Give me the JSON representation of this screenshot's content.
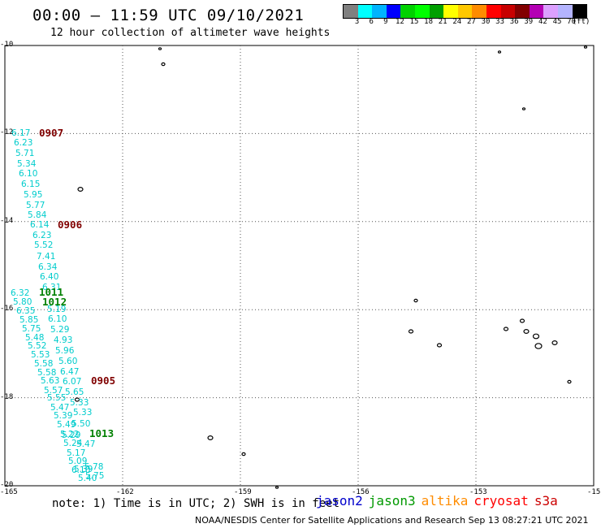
{
  "title": "00:00 – 11:59 UTC 09/10/2021",
  "subtitle": "12 hour collection of altimeter wave heights",
  "scale": {
    "colors": [
      "#808080",
      "#00ffff",
      "#00b4ff",
      "#0000ff",
      "#00d200",
      "#00ff00",
      "#00a000",
      "#ffff00",
      "#ffc800",
      "#ff8c00",
      "#ff0000",
      "#c80000",
      "#820000",
      "#b400b4",
      "#dca0ff",
      "#b4b4ff",
      "#000000"
    ],
    "labels": [
      "3",
      "6",
      "9",
      "12",
      "15",
      "18",
      "21",
      "24",
      "27",
      "30",
      "33",
      "36",
      "39",
      "42",
      "45",
      "70",
      "(ft)"
    ]
  },
  "axes": {
    "lat_labels": [
      "-10",
      "-12",
      "-14",
      "-16",
      "-18",
      "-20"
    ],
    "lon_labels": [
      "-165",
      "-162",
      "-159",
      "-156",
      "-153",
      "-15"
    ]
  },
  "tracks": [
    {
      "label": "0907",
      "color": "#800000"
    },
    {
      "label": "0906",
      "color": "#800000"
    },
    {
      "label": "1011",
      "color": "#008000"
    },
    {
      "label": "1012",
      "color": "#008000"
    },
    {
      "label": "0905",
      "color": "#800000"
    },
    {
      "label": "1013",
      "color": "#008000"
    }
  ],
  "wave_values": [
    "6.17",
    "6.23",
    "5.71",
    "5.34",
    "6.10",
    "6.15",
    "5.95",
    "5.77",
    "5.84",
    "6.14",
    "6.23",
    "5.52",
    "7.41",
    "6.34",
    "6.40",
    "6.31",
    "6.32",
    "5.80",
    "5.19",
    "6.35",
    "6.10",
    "5.85",
    "5.75",
    "5.29",
    "5.48",
    "4.93",
    "5.52",
    "5.96",
    "5.53",
    "5.60",
    "5.58",
    "6.47",
    "5.58",
    "6.07",
    "5.63",
    "5.57",
    "5.65",
    "5.55",
    "5.47",
    "5.33",
    "5.39",
    "5.33",
    "5.49",
    "5.50",
    "5.22",
    "5.29",
    "5.47",
    "5.24",
    "5.17",
    "5.09",
    "6.10",
    "5.78",
    "5.39",
    "5.75",
    "5.40"
  ],
  "note": "note: 1) Time is in UTC; 2) SWH is in feet",
  "satellites": [
    {
      "name": "jason2",
      "color": "#0000cc"
    },
    {
      "name": "jason3",
      "color": "#009900"
    },
    {
      "name": "altika",
      "color": "#ff8c00"
    },
    {
      "name": "cryosat",
      "color": "#ff0000"
    },
    {
      "name": "s3a",
      "color": "#cc0000"
    }
  ],
  "credit": "NOAA/NESDIS Center for Satellite Applications and Research   Sep 13 08:27:21 UTC 2021"
}
